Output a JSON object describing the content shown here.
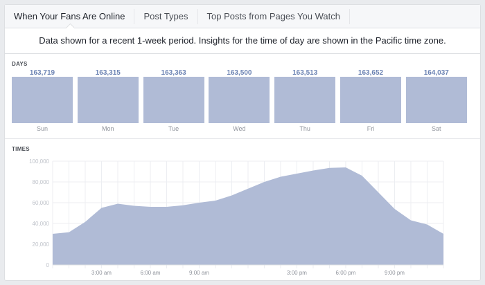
{
  "tabs": [
    {
      "label": "When Your Fans Are Online",
      "active": true
    },
    {
      "label": "Post Types"
    },
    {
      "label": "Top Posts from Pages You Watch"
    }
  ],
  "info": "Data shown for a recent 1-week period. Insights for the time of day are shown in the Pacific time zone.",
  "days": {
    "title": "DAYS",
    "items": [
      {
        "day": "Sun",
        "value": "163,719"
      },
      {
        "day": "Mon",
        "value": "163,315"
      },
      {
        "day": "Tue",
        "value": "163,363"
      },
      {
        "day": "Wed",
        "value": "163,500"
      },
      {
        "day": "Thu",
        "value": "163,513"
      },
      {
        "day": "Fri",
        "value": "163,652"
      },
      {
        "day": "Sat",
        "value": "164,037"
      }
    ]
  },
  "times": {
    "title": "TIMES"
  },
  "colors": {
    "fill": "#b0bbd6",
    "value_text": "#6d84b4"
  },
  "chart_data": {
    "type": "area",
    "x": [
      0,
      1,
      2,
      3,
      4,
      5,
      6,
      7,
      8,
      9,
      10,
      11,
      12,
      13,
      14,
      15,
      16,
      17,
      18,
      19,
      20,
      21,
      22,
      23,
      24
    ],
    "values": [
      30000,
      31500,
      41500,
      55000,
      59000,
      57000,
      56000,
      56000,
      57500,
      60000,
      62000,
      67000,
      73500,
      80000,
      85000,
      88000,
      91000,
      93500,
      94000,
      86000,
      70000,
      54000,
      43000,
      39000,
      30000
    ],
    "ylim": [
      0,
      100000
    ],
    "yticks": [
      "0",
      "20,000",
      "40,000",
      "60,000",
      "80,000",
      "100,000"
    ],
    "xticks": [
      {
        "x": 3,
        "label": "3:00 am"
      },
      {
        "x": 6,
        "label": "6:00 am"
      },
      {
        "x": 9,
        "label": "9:00 am"
      },
      {
        "x": 15,
        "label": "3:00 pm"
      },
      {
        "x": 18,
        "label": "6:00 pm"
      },
      {
        "x": 21,
        "label": "9:00 pm"
      }
    ],
    "grid": true
  }
}
